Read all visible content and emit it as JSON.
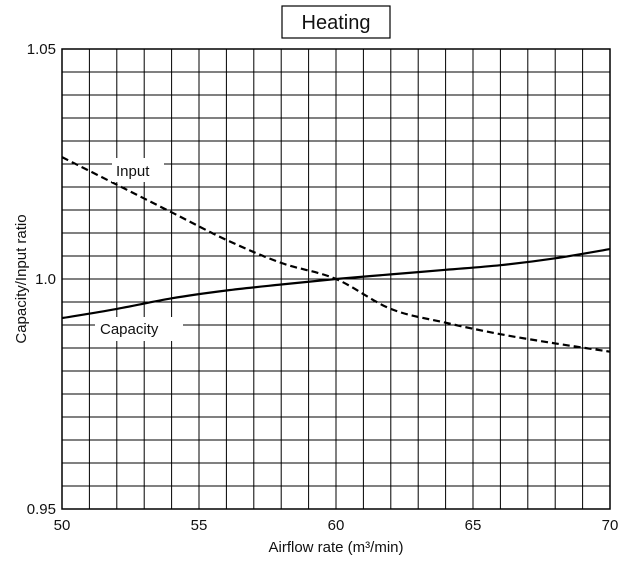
{
  "chart_data": {
    "type": "line",
    "title": "Heating",
    "xlabel": "Airflow rate (m³/min)",
    "ylabel": "Capacity/Input ratio",
    "xlim": [
      50,
      70
    ],
    "ylim": [
      0.95,
      1.05
    ],
    "x_ticks": [
      50,
      55,
      60,
      65,
      70
    ],
    "x_tick_labels": [
      "50",
      "55",
      "60",
      "65",
      "70"
    ],
    "y_ticks": [
      0.95,
      1.0,
      1.05
    ],
    "y_tick_labels": [
      "0.95",
      "1.0",
      "1.05"
    ],
    "grid": true,
    "grid_x_step": 1,
    "grid_y_step": 0.005,
    "series": [
      {
        "name": "Input",
        "style": "dashed",
        "x": [
          50,
          52,
          54,
          56,
          58,
          60,
          62,
          64,
          66,
          68,
          70
        ],
        "values": [
          1.0265,
          1.0205,
          1.0145,
          1.0085,
          1.0035,
          1.0,
          0.9935,
          0.9905,
          0.988,
          0.986,
          0.9842
        ]
      },
      {
        "name": "Capacity",
        "style": "solid",
        "x": [
          50,
          52,
          54,
          56,
          58,
          60,
          62,
          64,
          66,
          68,
          70
        ],
        "values": [
          0.9915,
          0.9935,
          0.9958,
          0.9975,
          0.9988,
          1.0,
          1.001,
          1.002,
          1.003,
          1.0045,
          1.0065
        ]
      }
    ],
    "colors": {
      "line": "#000000",
      "grid": "#000000",
      "background": "#ffffff"
    }
  }
}
